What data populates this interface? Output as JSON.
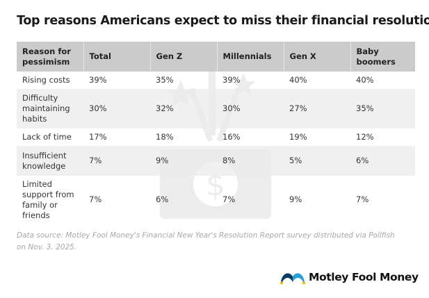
{
  "title": "Top reasons Americans expect to miss their financial resolutions",
  "chart_data": {
    "type": "table",
    "columns": [
      "Reason for pessimism",
      "Total",
      "Gen Z",
      "Millennials",
      "Gen X",
      "Baby boomers"
    ],
    "rows": [
      [
        "Rising costs",
        "39%",
        "35%",
        "39%",
        "40%",
        "40%"
      ],
      [
        "Difficulty maintaining habits",
        "30%",
        "32%",
        "30%",
        "27%",
        "35%"
      ],
      [
        "Lack of time",
        "17%",
        "18%",
        "16%",
        "19%",
        "12%"
      ],
      [
        "Insufficient knowledge",
        "7%",
        "9%",
        "8%",
        "5%",
        "6%"
      ],
      [
        "Limited support from family or friends",
        "7%",
        "6%",
        "7%",
        "9%",
        "7%"
      ]
    ]
  },
  "note": "Data source: Motley Fool Money's Financial New Year's Resolution Report survey distributed via Pollfish on Nov. 3, 2025.",
  "logo": {
    "text": "Motley Fool Money",
    "colors": {
      "dark": "#0a3d62",
      "light": "#2a9fd6",
      "accent": "#f5b800"
    }
  },
  "colors": {
    "header_bg": "#cbcbcb",
    "stripe": "#ebebeb"
  }
}
